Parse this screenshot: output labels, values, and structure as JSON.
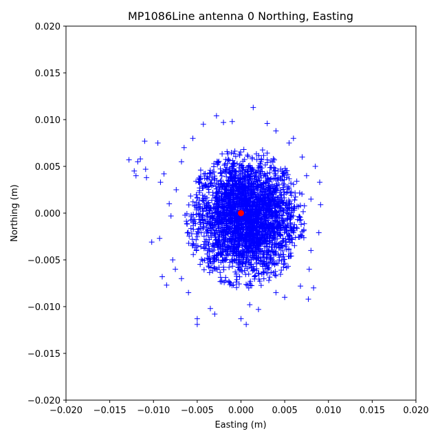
{
  "chart_data": {
    "type": "scatter",
    "title": "MP1086Line antenna 0 Northing, Easting",
    "xlabel": "Easting (m)",
    "ylabel": "Northing (m)",
    "xlim": [
      -0.02,
      0.02
    ],
    "ylim": [
      -0.02,
      0.02
    ],
    "xticks": [
      "−0.020",
      "−0.015",
      "−0.010",
      "−0.005",
      "0.000",
      "0.005",
      "0.010",
      "0.015",
      "0.020"
    ],
    "yticks": [
      "−0.020",
      "−0.015",
      "−0.010",
      "−0.005",
      "0.000",
      "0.005",
      "0.010",
      "0.015",
      "0.020"
    ],
    "grid": false,
    "series": [
      {
        "marker": "plus",
        "color": "#0000ff",
        "cluster_center": [
          0.0005,
          -0.0005
        ],
        "cluster_spread": [
          0.0035,
          0.0038
        ],
        "points": [
          [
            -0.0128,
            0.0057
          ],
          [
            -0.0122,
            0.0045
          ],
          [
            -0.0118,
            0.0055
          ],
          [
            -0.0115,
            0.0058
          ],
          [
            -0.011,
            0.0077
          ],
          [
            -0.0109,
            0.0047
          ],
          [
            -0.0108,
            0.0038
          ],
          [
            -0.0095,
            0.0075
          ],
          [
            -0.012,
            0.004
          ],
          [
            -0.0102,
            -0.0031
          ],
          [
            -0.0093,
            -0.0027
          ],
          [
            -0.009,
            -0.0068
          ],
          [
            -0.0085,
            -0.0077
          ],
          [
            -0.0088,
            0.0042
          ],
          [
            -0.0092,
            0.0033
          ],
          [
            -0.005,
            -0.0113
          ],
          [
            -0.005,
            -0.0119
          ],
          [
            -0.0028,
            0.0104
          ],
          [
            0.0014,
            0.0113
          ],
          [
            0.0,
            -0.0113
          ],
          [
            0.0006,
            -0.0119
          ],
          [
            0.0083,
            -0.008
          ],
          [
            0.0077,
            -0.0092
          ],
          [
            0.009,
            0.0033
          ],
          [
            0.0091,
            0.0009
          ],
          [
            0.0089,
            -0.0021
          ],
          [
            -0.0043,
            0.0095
          ],
          [
            -0.002,
            0.0097
          ],
          [
            0.003,
            0.0096
          ],
          [
            0.004,
            0.0088
          ],
          [
            0.006,
            0.008
          ],
          [
            0.0068,
            -0.0078
          ],
          [
            -0.003,
            -0.0108
          ],
          [
            0.002,
            -0.0103
          ],
          [
            -0.0068,
            0.0055
          ],
          [
            -0.0074,
            0.0025
          ],
          [
            -0.008,
            -0.0003
          ],
          [
            -0.0078,
            -0.005
          ],
          [
            -0.0068,
            -0.007
          ],
          [
            0.0075,
            0.004
          ],
          [
            0.008,
            -0.004
          ],
          [
            0.0085,
            0.005
          ],
          [
            0.007,
            0.006
          ],
          [
            -0.006,
            -0.0085
          ],
          [
            0.005,
            -0.009
          ],
          [
            -0.001,
            0.0098
          ],
          [
            0.001,
            -0.0098
          ],
          [
            -0.0035,
            -0.0102
          ],
          [
            0.004,
            -0.0085
          ],
          [
            -0.0055,
            0.008
          ],
          [
            0.0055,
            0.0075
          ],
          [
            -0.0065,
            0.007
          ],
          [
            0.008,
            0.0015
          ],
          [
            -0.0082,
            0.001
          ],
          [
            0.0078,
            -0.006
          ],
          [
            -0.0075,
            -0.006
          ]
        ]
      },
      {
        "marker": "circle",
        "color": "#ff0000",
        "points": [
          [
            0.0,
            0.0
          ]
        ]
      }
    ]
  }
}
